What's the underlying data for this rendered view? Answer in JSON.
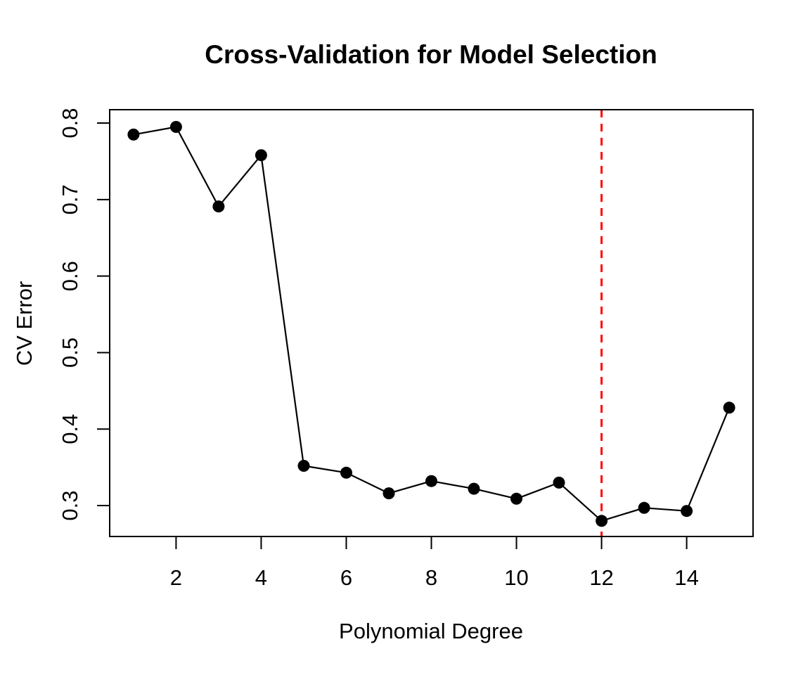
{
  "page": {
    "background_color": "#FFFFFF"
  },
  "chart_data": {
    "type": "line",
    "title": "Cross-Validation for Model Selection",
    "xlabel": "Polynomial Degree",
    "ylabel": "CV Error",
    "x": [
      1,
      2,
      3,
      4,
      5,
      6,
      7,
      8,
      9,
      10,
      11,
      12,
      13,
      14,
      15
    ],
    "y": [
      0.785,
      0.795,
      0.691,
      0.758,
      0.352,
      0.343,
      0.316,
      0.332,
      0.322,
      0.309,
      0.33,
      0.28,
      0.297,
      0.293,
      0.428
    ],
    "x_ticks": [
      2,
      4,
      6,
      8,
      10,
      12,
      14
    ],
    "y_ticks": [
      0.3,
      0.4,
      0.5,
      0.6,
      0.7,
      0.8
    ],
    "xlim": [
      0.44,
      15.56
    ],
    "ylim": [
      0.2596,
      0.8175
    ],
    "grid": false,
    "legend": "none",
    "marker": "filled-circle",
    "line_color": "#000000",
    "marker_color": "#000000",
    "axis_color": "#000000",
    "vline": {
      "x": 12,
      "color": "#FF0000",
      "style": "dashed"
    }
  }
}
